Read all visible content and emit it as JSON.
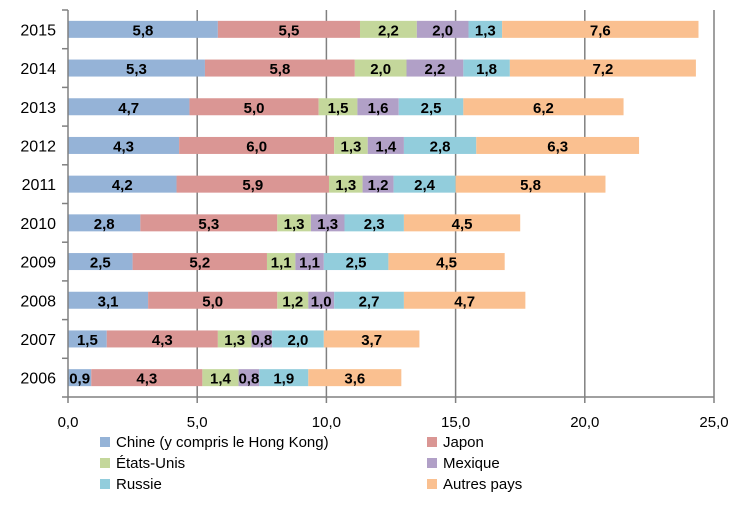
{
  "chart_data": {
    "type": "bar",
    "orientation": "horizontal",
    "stacked": true,
    "categories": [
      "2015",
      "2014",
      "2013",
      "2012",
      "2011",
      "2010",
      "2009",
      "2008",
      "2007",
      "2006"
    ],
    "series": [
      {
        "name": "Chine (y compris le Hong Kong)",
        "color": "#95b3d7",
        "values": [
          5.8,
          5.3,
          4.7,
          4.3,
          4.2,
          2.8,
          2.5,
          3.1,
          1.5,
          0.9
        ],
        "labels": [
          "5,8",
          "5,3",
          "4,7",
          "4,3",
          "4,2",
          "2,8",
          "2,5",
          "3,1",
          "1,5",
          "0,9"
        ]
      },
      {
        "name": "Japon",
        "color": "#da9694",
        "values": [
          5.5,
          5.8,
          5.0,
          6.0,
          5.9,
          5.3,
          5.2,
          5.0,
          4.3,
          4.3
        ],
        "labels": [
          "5,5",
          "5,8",
          "5,0",
          "6,0",
          "5,9",
          "5,3",
          "5,2",
          "5,0",
          "4,3",
          "4,3"
        ]
      },
      {
        "name": "États-Unis",
        "color": "#c4d79b",
        "values": [
          2.2,
          2.0,
          1.5,
          1.3,
          1.3,
          1.3,
          1.1,
          1.2,
          1.3,
          1.4
        ],
        "labels": [
          "2,2",
          "2,0",
          "1,5",
          "1,3",
          "1,3",
          "1,3",
          "1,1",
          "1,2",
          "1,3",
          "1,4"
        ]
      },
      {
        "name": "Mexique",
        "color": "#b1a0c7",
        "values": [
          2.0,
          2.2,
          1.6,
          1.4,
          1.2,
          1.3,
          1.1,
          1.0,
          0.8,
          0.8
        ],
        "labels": [
          "2,0",
          "2,2",
          "1,6",
          "1,4",
          "1,2",
          "1,3",
          "1,1",
          "1,0",
          "0,8",
          "0,8"
        ]
      },
      {
        "name": "Russie",
        "color": "#92cddc",
        "values": [
          1.3,
          1.8,
          2.5,
          2.8,
          2.4,
          2.3,
          2.5,
          2.7,
          2.0,
          1.9
        ],
        "labels": [
          "1,3",
          "1,8",
          "2,5",
          "2,8",
          "2,4",
          "2,3",
          "2,5",
          "2,7",
          "2,0",
          "1,9"
        ]
      },
      {
        "name": "Autres pays",
        "color": "#fac090",
        "values": [
          7.6,
          7.2,
          6.2,
          6.3,
          5.8,
          4.5,
          4.5,
          4.7,
          3.7,
          3.6
        ],
        "labels": [
          "7,6",
          "7,2",
          "6,2",
          "6,3",
          "5,8",
          "4,5",
          "4,5",
          "4,7",
          "3,7",
          "3,6"
        ]
      }
    ],
    "xlim": [
      0,
      25
    ],
    "xticks": [
      0,
      5,
      10,
      15,
      20,
      25
    ],
    "xtick_labels": [
      "0,0",
      "5,0",
      "10,0",
      "15,0",
      "20,0",
      "25,0"
    ],
    "grid": "vertical",
    "gridline_color": "#808080",
    "legend_position": "bottom"
  }
}
